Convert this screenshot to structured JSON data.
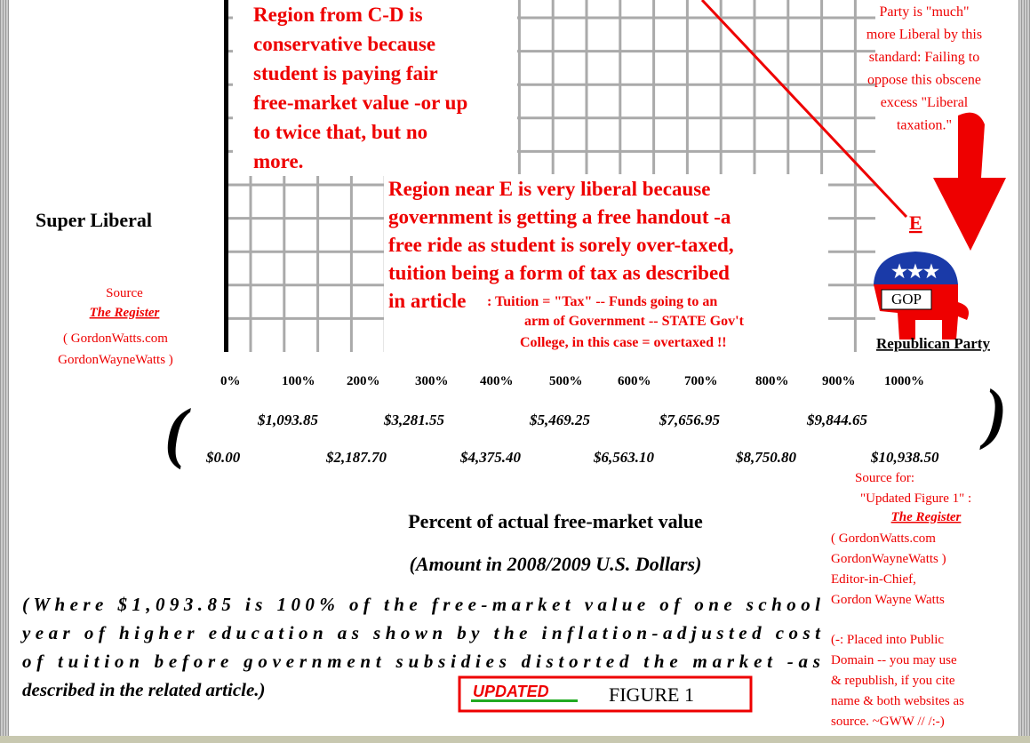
{
  "top_right_note": [
    "Party is \"much\"",
    "more Liberal by this",
    "standard: Failing to",
    "oppose this obscene",
    "excess \"Liberal",
    "taxation.\""
  ],
  "region_cd": [
    "Region from C-D is",
    "conservative because",
    "student is paying fair",
    "free-market value -or up",
    "to twice that, but no",
    "more."
  ],
  "region_e": [
    "Region near E is very liberal because",
    "government is getting a free handout -a",
    "free ride as student is sorely over-taxed,",
    "tuition being a form of tax as described",
    "in article"
  ],
  "tax_note": [
    ": Tuition = \"Tax\" -- Funds going to an",
    "arm of Government -- STATE Gov't",
    "College, in this case = overtaxed !!"
  ],
  "point_label": "E",
  "super_liberal": "Super Liberal",
  "left_source": {
    "heading": "Source",
    "name": "The Register",
    "lines": [
      "( GordonWatts.com",
      "GordonWayneWatts )"
    ]
  },
  "gop": {
    "badge": "GOP",
    "caption": "Republican  Party"
  },
  "percent_labels": [
    "0%",
    "100%",
    "200%",
    "300%",
    "400%",
    "500%",
    "600%",
    "700%",
    "800%",
    "900%",
    "1000%"
  ],
  "dollar_labels_top": [
    "$1,093.85",
    "$3,281.55",
    "$5,469.25",
    "$7,656.95",
    "$9,844.65"
  ],
  "dollar_labels_bottom": [
    "$0.00",
    "$2,187.70",
    "$4,375.40",
    "$6,563.10",
    "$8,750.80",
    "$10,938.50"
  ],
  "brackets": [
    "(",
    ")"
  ],
  "axis_title": "Percent  of  actual  free-market  value",
  "axis_subtitle": "(Amount in 2008/2009 U.S. Dollars)",
  "paragraph": [
    "(Where $1,093.85 is 100% of the free-market value of one school",
    "year of higher education as shown by the inflation-adjusted cost",
    "of tuition before government subsidies distorted the market -as",
    "described in the related article.)"
  ],
  "figure_label": {
    "tag": "UPDATED",
    "text": "FIGURE  1"
  },
  "right_source": {
    "lines_top": [
      "Source for:",
      "\"Updated Figure 1\" :"
    ],
    "name": "The Register",
    "lines": [
      "( GordonWatts.com",
      "GordonWayneWatts )",
      "Editor-in-Chief,",
      "Gordon Wayne Watts",
      "(-:  Placed into Public",
      "Domain -- you may use",
      "& republish, if you cite",
      "name & both websites as",
      "source. ~GWW //      /:-)"
    ]
  }
}
